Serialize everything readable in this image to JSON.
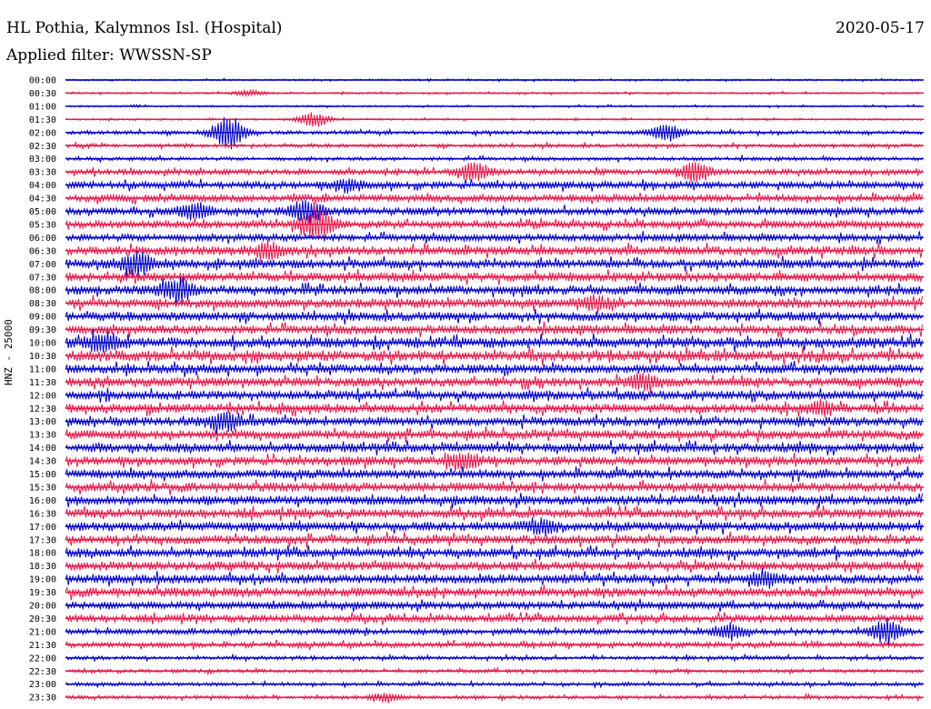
{
  "header": {
    "station": "HL Pothia, Kalymnos Isl. (Hospital)",
    "date": "2020-05-17",
    "filter": "Applied filter: WWSSN-SP"
  },
  "chart_data": {
    "type": "line",
    "title": "HL Pothia, Kalymnos Isl. (Hospital)",
    "subtitle": "Applied filter: WWSSN-SP",
    "ylabel": "HNZ - 25000",
    "colors": [
      "#0000cc",
      "#e8174a"
    ],
    "rows": [
      "00:00",
      "00:30",
      "01:00",
      "01:30",
      "02:00",
      "02:30",
      "03:00",
      "03:30",
      "04:00",
      "04:30",
      "05:00",
      "05:30",
      "06:00",
      "06:30",
      "07:00",
      "07:30",
      "08:00",
      "08:30",
      "09:00",
      "09:30",
      "10:00",
      "10:30",
      "11:00",
      "11:30",
      "12:00",
      "12:30",
      "13:00",
      "13:30",
      "14:00",
      "14:30",
      "15:00",
      "15:30",
      "16:00",
      "16:30",
      "17:00",
      "17:30",
      "18:00",
      "18:30",
      "19:00",
      "19:30",
      "20:00",
      "20:30",
      "21:00",
      "21:30",
      "22:00",
      "22:30",
      "23:00",
      "23:30"
    ],
    "noise_level": [
      1,
      1,
      1,
      1,
      2,
      2,
      2,
      3,
      4,
      4,
      4,
      4,
      4,
      5,
      5,
      5,
      5,
      5,
      5,
      5,
      6,
      6,
      5,
      5,
      5,
      5,
      5,
      5,
      5,
      5,
      5,
      5,
      5,
      5,
      5,
      5,
      5,
      5,
      5,
      5,
      4,
      4,
      3,
      3,
      2,
      2,
      2,
      2
    ],
    "events": [
      {
        "row": "00:30",
        "minute": 6.4,
        "amplitude": 3
      },
      {
        "row": "01:30",
        "minute": 8.7,
        "amplitude": 8
      },
      {
        "row": "02:00",
        "minute": 5.7,
        "amplitude": 18
      },
      {
        "row": "02:00",
        "minute": 21.0,
        "amplitude": 9
      },
      {
        "row": "03:30",
        "minute": 14.3,
        "amplitude": 10
      },
      {
        "row": "03:30",
        "minute": 22.0,
        "amplitude": 10
      },
      {
        "row": "04:00",
        "minute": 9.9,
        "amplitude": 6
      },
      {
        "row": "05:00",
        "minute": 4.5,
        "amplitude": 9
      },
      {
        "row": "05:00",
        "minute": 8.4,
        "amplitude": 12
      },
      {
        "row": "05:30",
        "minute": 8.8,
        "amplitude": 18
      },
      {
        "row": "06:30",
        "minute": 7.1,
        "amplitude": 7
      },
      {
        "row": "07:00",
        "minute": 2.5,
        "amplitude": 12
      },
      {
        "row": "08:00",
        "minute": 3.9,
        "amplitude": 14
      },
      {
        "row": "08:30",
        "minute": 18.5,
        "amplitude": 7
      },
      {
        "row": "10:00",
        "minute": 1.3,
        "amplitude": 7
      },
      {
        "row": "11:30",
        "minute": 20.2,
        "amplitude": 8
      },
      {
        "row": "12:30",
        "minute": 26.4,
        "amplitude": 6
      },
      {
        "row": "13:00",
        "minute": 5.6,
        "amplitude": 10
      },
      {
        "row": "14:30",
        "minute": 13.9,
        "amplitude": 8
      },
      {
        "row": "17:00",
        "minute": 16.6,
        "amplitude": 7
      },
      {
        "row": "19:00",
        "minute": 24.4,
        "amplitude": 8
      },
      {
        "row": "21:00",
        "minute": 23.2,
        "amplitude": 8
      },
      {
        "row": "21:00",
        "minute": 28.7,
        "amplitude": 12
      },
      {
        "row": "23:30",
        "minute": 11.2,
        "amplitude": 5
      }
    ]
  }
}
